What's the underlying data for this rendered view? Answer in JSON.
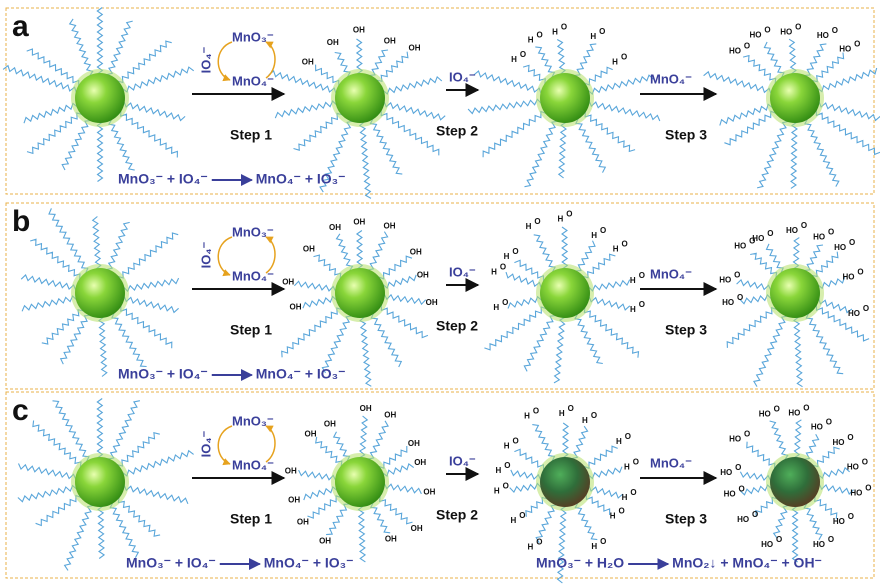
{
  "panels": [
    {
      "label": "a",
      "step1": "Step 1",
      "step2": "Step 2",
      "step3": "Step 3",
      "cycle_top": "MnO₃⁻",
      "cycle_bottom": "MnO₄⁻",
      "cycle_side": "IO₄⁻",
      "step2_reagent": "IO₄⁻",
      "step3_reagent": "MnO₄⁻",
      "equations": [
        {
          "left": "MnO₃⁻ + IO₄⁻",
          "right": "MnO₄⁻ + IO₃⁻"
        }
      ]
    },
    {
      "label": "b",
      "step1": "Step 1",
      "step2": "Step 2",
      "step3": "Step 3",
      "cycle_top": "MnO₃⁻",
      "cycle_bottom": "MnO₄⁻",
      "cycle_side": "IO₄⁻",
      "step2_reagent": "IO₄⁻",
      "step3_reagent": "MnO₄⁻",
      "equations": [
        {
          "left": "MnO₃⁻ + IO₄⁻",
          "right": "MnO₄⁻ + IO₃⁻"
        }
      ]
    },
    {
      "label": "c",
      "step1": "Step 1",
      "step2": "Step 2",
      "step3": "Step 3",
      "cycle_top": "MnO₃⁻",
      "cycle_bottom": "MnO₄⁻",
      "cycle_side": "IO₄⁻",
      "step2_reagent": "IO₄⁻",
      "step3_reagent": "MnO₄⁻",
      "equations": [
        {
          "left": "MnO₃⁻ + IO₄⁻",
          "right": "MnO₄⁻ + IO₃⁻"
        },
        {
          "left": "MnO₃⁻ + H₂O",
          "right": "MnO₂↓ + MnO₄⁻ + OH⁻"
        }
      ]
    }
  ],
  "groups": {
    "oh": "OH",
    "ho": "HO",
    "h": "H",
    "o": "O"
  }
}
